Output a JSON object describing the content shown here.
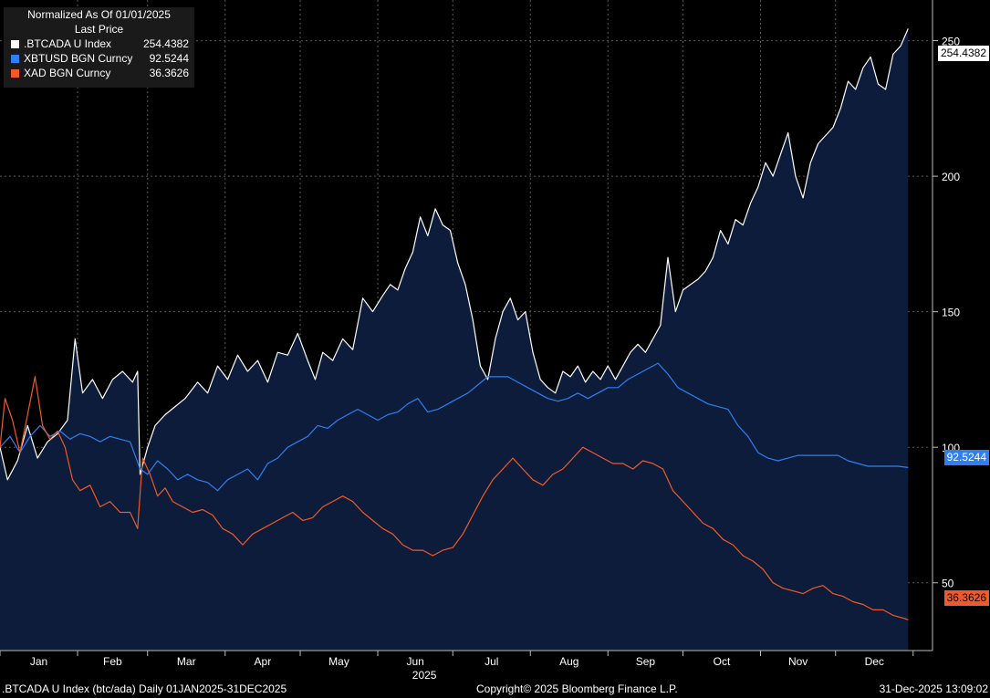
{
  "legend": {
    "header_line1": "Normalized As Of 01/01/2025",
    "header_line2": "Last Price"
  },
  "footer": {
    "left": ".BTCADA U Index (btc/ada) Daily 01JAN2025-31DEC2025",
    "center": "Copyright© 2025 Bloomberg Finance L.P.",
    "right": "31-Dec-2025 13:09:02"
  },
  "colors": {
    "background": "#000000",
    "area_fill": "#0c1c3a",
    "grid": "#5a5a5a",
    "btcada": "#ffffff",
    "xbtusd": "#2f7ff0",
    "xad": "#f05a2a"
  },
  "chart_data": {
    "type": "line",
    "title": "",
    "xlabel": "2025",
    "ylabel": "",
    "ylim": [
      25,
      265
    ],
    "y_ticks": [
      50,
      100,
      150,
      200,
      250
    ],
    "x_month_labels": [
      "Jan",
      "Feb",
      "Mar",
      "Apr",
      "May",
      "Jun",
      "Jul",
      "Aug",
      "Sep",
      "Oct",
      "Nov",
      "Dec"
    ],
    "x_range_days": [
      1,
      365
    ],
    "grid": true,
    "legend_position": "top-left",
    "series": [
      {
        "name": ".BTCADA U Index",
        "last": "254.4382",
        "color": "#ffffff",
        "area": true,
        "points": [
          [
            1,
            100
          ],
          [
            4,
            88
          ],
          [
            8,
            95
          ],
          [
            12,
            108
          ],
          [
            16,
            96
          ],
          [
            20,
            102
          ],
          [
            24,
            105
          ],
          [
            28,
            110
          ],
          [
            31,
            140
          ],
          [
            34,
            120
          ],
          [
            38,
            125
          ],
          [
            42,
            118
          ],
          [
            46,
            125
          ],
          [
            50,
            128
          ],
          [
            54,
            124
          ],
          [
            56,
            128
          ],
          [
            57,
            90
          ],
          [
            60,
            100
          ],
          [
            63,
            108
          ],
          [
            67,
            112
          ],
          [
            71,
            115
          ],
          [
            75,
            118
          ],
          [
            80,
            124
          ],
          [
            84,
            120
          ],
          [
            88,
            130
          ],
          [
            92,
            125
          ],
          [
            96,
            134
          ],
          [
            100,
            128
          ],
          [
            104,
            132
          ],
          [
            108,
            124
          ],
          [
            112,
            135
          ],
          [
            116,
            134
          ],
          [
            120,
            142
          ],
          [
            124,
            132
          ],
          [
            127,
            125
          ],
          [
            130,
            135
          ],
          [
            134,
            132
          ],
          [
            138,
            140
          ],
          [
            142,
            136
          ],
          [
            146,
            155
          ],
          [
            150,
            150
          ],
          [
            154,
            156
          ],
          [
            157,
            160
          ],
          [
            160,
            158
          ],
          [
            163,
            166
          ],
          [
            166,
            172
          ],
          [
            169,
            185
          ],
          [
            172,
            178
          ],
          [
            175,
            188
          ],
          [
            178,
            182
          ],
          [
            181,
            180
          ],
          [
            184,
            168
          ],
          [
            187,
            160
          ],
          [
            190,
            147
          ],
          [
            193,
            130
          ],
          [
            196,
            125
          ],
          [
            199,
            140
          ],
          [
            202,
            150
          ],
          [
            205,
            155
          ],
          [
            208,
            147
          ],
          [
            211,
            150
          ],
          [
            214,
            135
          ],
          [
            217,
            125
          ],
          [
            220,
            122
          ],
          [
            223,
            120
          ],
          [
            226,
            128
          ],
          [
            229,
            126
          ],
          [
            232,
            130
          ],
          [
            235,
            124
          ],
          [
            238,
            128
          ],
          [
            241,
            125
          ],
          [
            244,
            130
          ],
          [
            247,
            125
          ],
          [
            250,
            130
          ],
          [
            253,
            135
          ],
          [
            256,
            138
          ],
          [
            259,
            135
          ],
          [
            262,
            140
          ],
          [
            265,
            145
          ],
          [
            268,
            170
          ],
          [
            271,
            150
          ],
          [
            274,
            158
          ],
          [
            277,
            160
          ],
          [
            280,
            162
          ],
          [
            283,
            165
          ],
          [
            286,
            170
          ],
          [
            289,
            180
          ],
          [
            292,
            175
          ],
          [
            295,
            184
          ],
          [
            298,
            182
          ],
          [
            301,
            190
          ],
          [
            304,
            196
          ],
          [
            307,
            205
          ],
          [
            310,
            200
          ],
          [
            313,
            208
          ],
          [
            316,
            216
          ],
          [
            319,
            200
          ],
          [
            322,
            192
          ],
          [
            325,
            205
          ],
          [
            328,
            212
          ],
          [
            331,
            215
          ],
          [
            334,
            218
          ],
          [
            337,
            225
          ],
          [
            340,
            235
          ],
          [
            343,
            232
          ],
          [
            346,
            240
          ],
          [
            349,
            244
          ],
          [
            352,
            234
          ],
          [
            355,
            232
          ],
          [
            358,
            245
          ],
          [
            361,
            248
          ],
          [
            364,
            254.4382
          ]
        ]
      },
      {
        "name": "XBTUSD BGN Curncy",
        "last": "92.5244",
        "color": "#2f7ff0",
        "area": false,
        "points": [
          [
            1,
            100
          ],
          [
            5,
            104
          ],
          [
            9,
            98
          ],
          [
            13,
            104
          ],
          [
            17,
            108
          ],
          [
            21,
            104
          ],
          [
            25,
            106
          ],
          [
            29,
            103
          ],
          [
            33,
            105
          ],
          [
            37,
            104
          ],
          [
            41,
            102
          ],
          [
            45,
            104
          ],
          [
            49,
            103
          ],
          [
            53,
            102
          ],
          [
            57,
            92
          ],
          [
            60,
            90
          ],
          [
            64,
            95
          ],
          [
            68,
            92
          ],
          [
            72,
            88
          ],
          [
            76,
            90
          ],
          [
            80,
            88
          ],
          [
            84,
            87
          ],
          [
            88,
            84
          ],
          [
            92,
            88
          ],
          [
            96,
            90
          ],
          [
            100,
            92
          ],
          [
            104,
            88
          ],
          [
            108,
            94
          ],
          [
            112,
            96
          ],
          [
            116,
            100
          ],
          [
            120,
            102
          ],
          [
            124,
            104
          ],
          [
            128,
            108
          ],
          [
            132,
            107
          ],
          [
            136,
            110
          ],
          [
            140,
            112
          ],
          [
            144,
            114
          ],
          [
            148,
            112
          ],
          [
            152,
            110
          ],
          [
            156,
            112
          ],
          [
            160,
            113
          ],
          [
            164,
            116
          ],
          [
            168,
            118
          ],
          [
            172,
            113
          ],
          [
            176,
            114
          ],
          [
            180,
            116
          ],
          [
            184,
            118
          ],
          [
            188,
            120
          ],
          [
            192,
            123
          ],
          [
            196,
            126
          ],
          [
            200,
            126
          ],
          [
            204,
            126
          ],
          [
            208,
            124
          ],
          [
            212,
            122
          ],
          [
            216,
            120
          ],
          [
            220,
            118
          ],
          [
            224,
            117
          ],
          [
            228,
            118
          ],
          [
            232,
            120
          ],
          [
            236,
            118
          ],
          [
            240,
            120
          ],
          [
            244,
            122
          ],
          [
            248,
            122
          ],
          [
            252,
            125
          ],
          [
            256,
            127
          ],
          [
            260,
            129
          ],
          [
            264,
            131
          ],
          [
            268,
            127
          ],
          [
            272,
            122
          ],
          [
            276,
            120
          ],
          [
            280,
            118
          ],
          [
            284,
            116
          ],
          [
            288,
            115
          ],
          [
            292,
            114
          ],
          [
            296,
            108
          ],
          [
            300,
            104
          ],
          [
            304,
            98
          ],
          [
            308,
            96
          ],
          [
            312,
            95
          ],
          [
            316,
            96
          ],
          [
            320,
            97
          ],
          [
            324,
            97
          ],
          [
            328,
            97
          ],
          [
            332,
            97
          ],
          [
            336,
            97
          ],
          [
            340,
            95
          ],
          [
            344,
            94
          ],
          [
            348,
            93
          ],
          [
            352,
            93
          ],
          [
            356,
            93
          ],
          [
            360,
            93
          ],
          [
            364,
            92.5244
          ]
        ]
      },
      {
        "name": "XAD BGN Curncy",
        "last": "36.3626",
        "color": "#f05a2a",
        "area": false,
        "points": [
          [
            1,
            100
          ],
          [
            3,
            118
          ],
          [
            6,
            110
          ],
          [
            9,
            98
          ],
          [
            12,
            112
          ],
          [
            15,
            126
          ],
          [
            18,
            108
          ],
          [
            21,
            103
          ],
          [
            24,
            106
          ],
          [
            27,
            100
          ],
          [
            30,
            88
          ],
          [
            33,
            84
          ],
          [
            37,
            86
          ],
          [
            41,
            78
          ],
          [
            45,
            80
          ],
          [
            49,
            76
          ],
          [
            53,
            76
          ],
          [
            56,
            70
          ],
          [
            58,
            96
          ],
          [
            61,
            90
          ],
          [
            64,
            82
          ],
          [
            67,
            85
          ],
          [
            70,
            80
          ],
          [
            74,
            78
          ],
          [
            78,
            76
          ],
          [
            82,
            77
          ],
          [
            86,
            75
          ],
          [
            90,
            70
          ],
          [
            94,
            68
          ],
          [
            98,
            64
          ],
          [
            102,
            68
          ],
          [
            106,
            70
          ],
          [
            110,
            72
          ],
          [
            114,
            74
          ],
          [
            118,
            76
          ],
          [
            122,
            73
          ],
          [
            126,
            74
          ],
          [
            130,
            78
          ],
          [
            134,
            80
          ],
          [
            138,
            82
          ],
          [
            142,
            80
          ],
          [
            146,
            76
          ],
          [
            150,
            73
          ],
          [
            154,
            70
          ],
          [
            158,
            68
          ],
          [
            162,
            64
          ],
          [
            166,
            62
          ],
          [
            170,
            62
          ],
          [
            174,
            60
          ],
          [
            178,
            62
          ],
          [
            182,
            63
          ],
          [
            186,
            68
          ],
          [
            190,
            75
          ],
          [
            194,
            82
          ],
          [
            198,
            88
          ],
          [
            202,
            92
          ],
          [
            206,
            96
          ],
          [
            210,
            92
          ],
          [
            214,
            88
          ],
          [
            218,
            86
          ],
          [
            222,
            90
          ],
          [
            226,
            92
          ],
          [
            230,
            96
          ],
          [
            234,
            100
          ],
          [
            238,
            98
          ],
          [
            242,
            96
          ],
          [
            246,
            94
          ],
          [
            250,
            94
          ],
          [
            254,
            92
          ],
          [
            258,
            95
          ],
          [
            262,
            94
          ],
          [
            266,
            92
          ],
          [
            270,
            84
          ],
          [
            274,
            80
          ],
          [
            278,
            76
          ],
          [
            282,
            72
          ],
          [
            286,
            70
          ],
          [
            290,
            66
          ],
          [
            294,
            64
          ],
          [
            298,
            60
          ],
          [
            302,
            58
          ],
          [
            306,
            55
          ],
          [
            310,
            50
          ],
          [
            314,
            48
          ],
          [
            318,
            47
          ],
          [
            322,
            46
          ],
          [
            326,
            48
          ],
          [
            330,
            49
          ],
          [
            334,
            46
          ],
          [
            338,
            45
          ],
          [
            342,
            43
          ],
          [
            346,
            42
          ],
          [
            350,
            40
          ],
          [
            354,
            40
          ],
          [
            358,
            38
          ],
          [
            362,
            37
          ],
          [
            364,
            36.3626
          ]
        ]
      }
    ]
  }
}
